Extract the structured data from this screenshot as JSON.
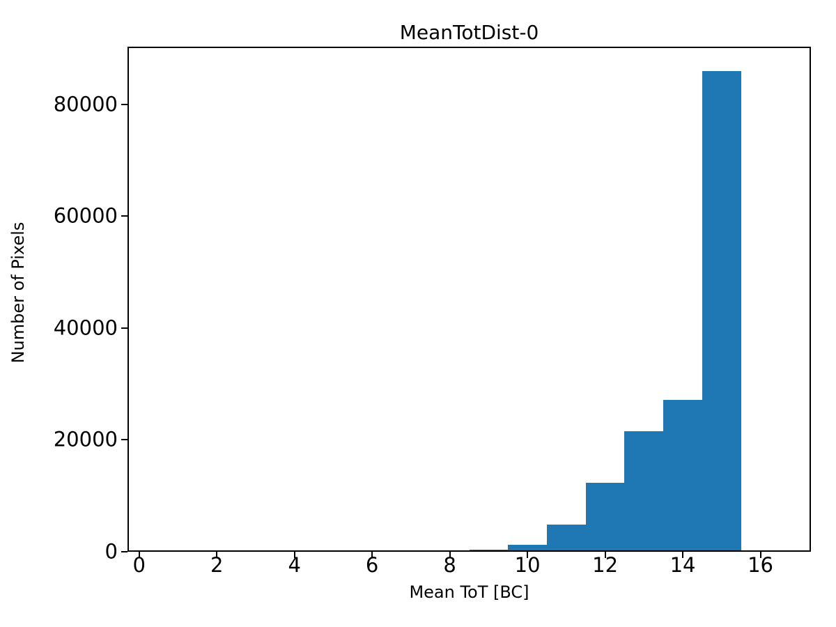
{
  "chart_data": {
    "type": "bar",
    "title": "MeanTotDist-0",
    "xlabel": "Mean ToT [BC]",
    "ylabel": "Number of Pixels",
    "bar_color": "#1f77b4",
    "xlim": [
      -0.3,
      17.3
    ],
    "ylim": [
      0,
      90300
    ],
    "x_ticks": [
      0,
      2,
      4,
      6,
      8,
      10,
      12,
      14,
      16
    ],
    "y_ticks": [
      0,
      20000,
      40000,
      60000,
      80000
    ],
    "bin_edges": [
      8.5,
      9.5,
      10.5,
      11.5,
      12.5,
      13.5,
      14.5,
      15.5
    ],
    "counts": [
      370,
      1250,
      4800,
      12300,
      21600,
      27200,
      86000
    ],
    "grid": false,
    "legend": "none"
  }
}
